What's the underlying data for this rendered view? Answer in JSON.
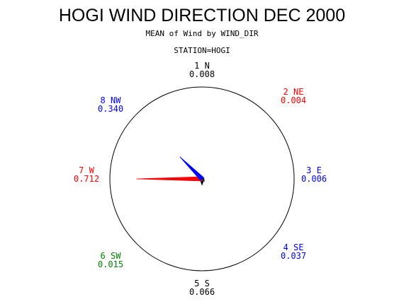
{
  "chart_data": {
    "type": "polar-star",
    "title": "HOGI WIND DIRECTION DEC 2000",
    "subtitle": "MEAN of Wind by WIND_DIR",
    "group_label": "STATION=HOGI",
    "directions": [
      {
        "label": "1 N",
        "value": "0.008",
        "v": 0.008,
        "color": "#000000"
      },
      {
        "label": "2 NE",
        "value": "0.004",
        "v": 0.004,
        "color": "#ff0000"
      },
      {
        "label": "3 E",
        "value": "0.006",
        "v": 0.006,
        "color": "#0000ff"
      },
      {
        "label": "4 SE",
        "value": "0.037",
        "v": 0.037,
        "color": "#0000ff"
      },
      {
        "label": "5 S",
        "value": "0.066",
        "v": 0.066,
        "color": "#000000"
      },
      {
        "label": "6 SW",
        "value": "0.015",
        "v": 0.015,
        "color": "#008000"
      },
      {
        "label": "7 W",
        "value": "0.712",
        "v": 0.712,
        "color": "#ff0000"
      },
      {
        "label": "8 NW",
        "value": "0.340",
        "v": 0.34,
        "color": "#0000ff"
      }
    ],
    "max_value": 1.0,
    "colors": {
      "outline": "#000000",
      "red": "#ff0000",
      "blue": "#0000ff",
      "green": "#008000"
    }
  }
}
